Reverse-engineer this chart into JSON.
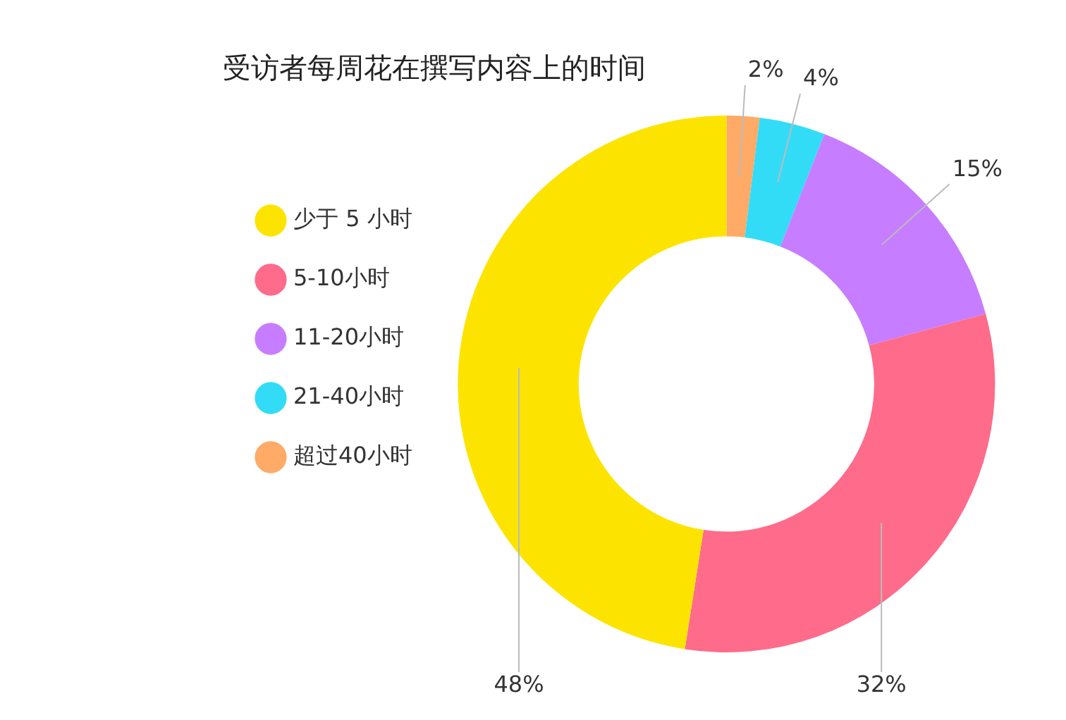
{
  "chart_data": {
    "type": "donut",
    "title": "受访者每周花在撰写内容上的时间",
    "categories": [
      "少于 5 小时",
      "5-10小时",
      "11-20小时",
      "21-40小时",
      "超过40小时"
    ],
    "values": [
      48,
      32,
      15,
      4,
      2
    ],
    "colors": [
      "#fde400",
      "#ff6b8a",
      "#c77dff",
      "#33dcf6",
      "#ffaa66"
    ],
    "value_labels": [
      "48%",
      "32%",
      "15%",
      "4%",
      "2%"
    ],
    "legend": "left"
  }
}
